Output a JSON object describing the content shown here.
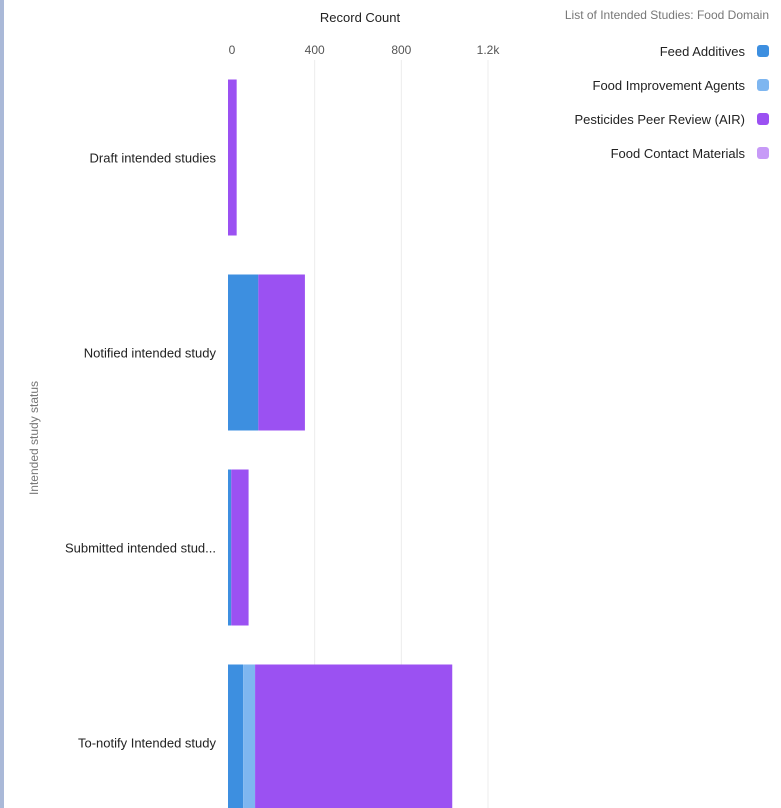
{
  "chart_data": {
    "type": "bar",
    "orientation": "horizontal",
    "stacked": true,
    "title": "Record Count",
    "ylabel": "Intended study status",
    "xlim": [
      0,
      1200
    ],
    "x_ticks": [
      "0",
      "400",
      "800",
      "1.2k"
    ],
    "grid": true,
    "legend_title": "List of Intended Studies: Food Domain",
    "legend_position": "top-right",
    "categories": [
      "Draft intended studies",
      "Notified intended study",
      "Submitted intended stud...",
      "To-notify Intended study"
    ],
    "series": [
      {
        "name": "Feed Additives",
        "color": "#3d8fe0",
        "values": [
          0,
          140,
          15,
          70
        ]
      },
      {
        "name": "Food Improvement Agents",
        "color": "#7eb6f0",
        "values": [
          0,
          0,
          0,
          55
        ]
      },
      {
        "name": "Pesticides Peer Review (AIR)",
        "color": "#9b51f2",
        "values": [
          40,
          215,
          80,
          910
        ]
      },
      {
        "name": "Food Contact Materials",
        "color": "#c79af7",
        "values": [
          0,
          0,
          0,
          0
        ]
      }
    ]
  }
}
